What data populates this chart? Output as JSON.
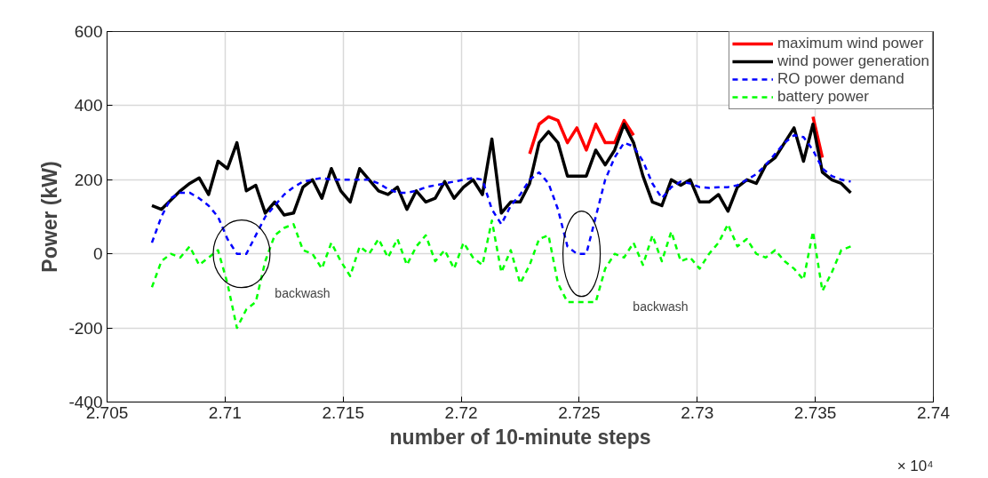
{
  "chart_data": {
    "type": "line",
    "xlabel": "number of 10-minute steps",
    "ylabel": "Power (kW)",
    "x": [
      2.7069,
      2.7073,
      2.7077,
      2.7081,
      2.7085,
      2.7089,
      2.7093,
      2.7097,
      2.7101,
      2.7105,
      2.7109,
      2.7113,
      2.7117,
      2.7121,
      2.7125,
      2.7129,
      2.7133,
      2.7137,
      2.7141,
      2.7145,
      2.7149,
      2.7153,
      2.7157,
      2.7161,
      2.7165,
      2.7169,
      2.7173,
      2.7177,
      2.7181,
      2.7185,
      2.7189,
      2.7193,
      2.7197,
      2.7201,
      2.7205,
      2.7209,
      2.7213,
      2.7217,
      2.7221,
      2.7225,
      2.7229,
      2.7233,
      2.7237,
      2.7241,
      2.7245,
      2.7249,
      2.7253,
      2.7257,
      2.7261,
      2.7265,
      2.7269,
      2.7273,
      2.7277,
      2.7281,
      2.7285,
      2.7289,
      2.7293,
      2.7297,
      2.7301,
      2.7305,
      2.7309,
      2.7313,
      2.7317,
      2.7321,
      2.7325,
      2.7329,
      2.7333,
      2.7337,
      2.7341,
      2.7345,
      2.7349,
      2.7353,
      2.7357,
      2.7361,
      2.7365
    ],
    "series": [
      {
        "name": "maximum wind power",
        "color": "#ff0000",
        "line_style": "solid",
        "values": [
          null,
          null,
          null,
          null,
          null,
          null,
          null,
          null,
          null,
          null,
          null,
          null,
          null,
          null,
          null,
          null,
          null,
          null,
          null,
          null,
          null,
          null,
          null,
          null,
          null,
          null,
          null,
          null,
          null,
          null,
          null,
          null,
          null,
          null,
          null,
          null,
          null,
          null,
          null,
          null,
          270,
          350,
          370,
          360,
          300,
          340,
          280,
          350,
          300,
          300,
          360,
          320,
          null,
          null,
          null,
          null,
          null,
          null,
          null,
          null,
          null,
          null,
          null,
          null,
          null,
          null,
          null,
          null,
          null,
          null,
          370,
          260,
          null,
          null,
          null
        ]
      },
      {
        "name": "wind power generation",
        "color": "#000000",
        "line_style": "solid",
        "values": [
          130,
          120,
          145,
          170,
          190,
          205,
          160,
          250,
          230,
          300,
          170,
          185,
          110,
          140,
          105,
          110,
          180,
          200,
          150,
          230,
          170,
          140,
          230,
          200,
          170,
          160,
          180,
          120,
          170,
          140,
          150,
          195,
          150,
          180,
          200,
          160,
          310,
          110,
          140,
          140,
          190,
          300,
          330,
          300,
          210,
          210,
          210,
          280,
          240,
          280,
          350,
          300,
          210,
          140,
          130,
          200,
          185,
          200,
          140,
          140,
          160,
          115,
          180,
          200,
          190,
          240,
          260,
          300,
          340,
          250,
          350,
          220,
          200,
          190,
          165
        ]
      },
      {
        "name": "RO power demand",
        "color": "#0000ff",
        "line_style": "dashed",
        "values": [
          30,
          100,
          150,
          165,
          165,
          150,
          130,
          100,
          40,
          0,
          0,
          50,
          100,
          130,
          160,
          180,
          195,
          200,
          205,
          200,
          200,
          200,
          200,
          200,
          190,
          175,
          165,
          165,
          170,
          180,
          185,
          190,
          195,
          200,
          205,
          200,
          120,
          80,
          130,
          160,
          200,
          220,
          190,
          120,
          20,
          0,
          0,
          100,
          200,
          260,
          300,
          290,
          250,
          190,
          150,
          180,
          195,
          190,
          180,
          178,
          180,
          180,
          185,
          200,
          215,
          240,
          270,
          300,
          320,
          315,
          280,
          230,
          210,
          200,
          195
        ]
      },
      {
        "name": "battery power",
        "color": "#00ff00",
        "line_style": "dashed",
        "values": [
          -90,
          -20,
          0,
          -10,
          20,
          -30,
          -10,
          10,
          -80,
          -200,
          -150,
          -130,
          -20,
          50,
          70,
          80,
          10,
          0,
          -40,
          30,
          -20,
          -60,
          20,
          0,
          40,
          -10,
          40,
          -30,
          20,
          50,
          -20,
          10,
          -40,
          30,
          -10,
          -30,
          90,
          -50,
          10,
          -80,
          -30,
          40,
          50,
          -80,
          -130,
          -130,
          -130,
          -130,
          -40,
          0,
          -10,
          30,
          -30,
          50,
          -20,
          60,
          -20,
          -10,
          -40,
          0,
          30,
          80,
          20,
          40,
          0,
          -10,
          10,
          -20,
          -40,
          -70,
          60,
          -100,
          -50,
          10,
          20
        ]
      }
    ],
    "xlim": [
      2.705,
      2.74
    ],
    "xticks": [
      2.705,
      2.71,
      2.715,
      2.72,
      2.725,
      2.73,
      2.735,
      2.74
    ],
    "ylim": [
      -400,
      600
    ],
    "yticks": [
      -400,
      -200,
      0,
      200,
      400,
      600
    ],
    "grid": true,
    "legend": "top right",
    "annotations": [
      "backwash",
      "backwash",
      "× 10⁴"
    ]
  }
}
